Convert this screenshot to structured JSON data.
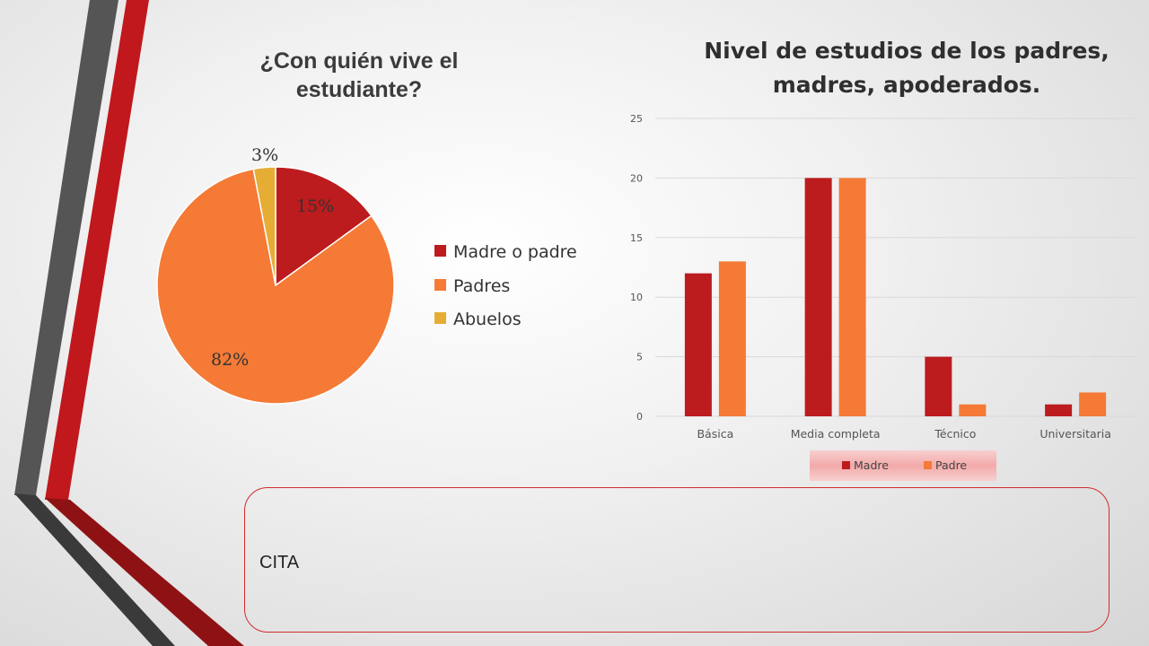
{
  "colors": {
    "dark_red": "#bc1c1e",
    "orange": "#f47a36",
    "yellow": "#e6ad35",
    "decor_gray": "#555555",
    "decor_red": "#c0181d"
  },
  "pie": {
    "title": "¿Con quién vive el estudiante?",
    "labels": {
      "madre_o_padre": "15%",
      "padres": "82%",
      "abuelos": "3%"
    },
    "legend": {
      "madre_o_padre": "Madre o padre",
      "padres": "Padres",
      "abuelos": "Abuelos"
    }
  },
  "bar": {
    "title": "Nivel de estudios de los padres, madres, apoderados."
  },
  "cita": {
    "text": "CITA"
  },
  "chart_data": [
    {
      "type": "pie",
      "title": "¿Con quién vive el estudiante?",
      "categories": [
        "Madre o padre",
        "Padres",
        "Abuelos"
      ],
      "values": [
        15,
        82,
        3
      ],
      "unit": "%",
      "legend": "right"
    },
    {
      "type": "bar",
      "title": "Nivel de estudios de los padres, madres, apoderados.",
      "categories": [
        "Básica",
        "Media completa",
        "Técnico",
        "Universitaria"
      ],
      "series": [
        {
          "name": "Madre",
          "values": [
            12,
            20,
            5,
            1
          ]
        },
        {
          "name": "Padre",
          "values": [
            13,
            20,
            1,
            2
          ]
        }
      ],
      "yticks": [
        "0",
        "5",
        "10",
        "15",
        "20",
        "25"
      ],
      "ylim": [
        0,
        25
      ],
      "grid": true,
      "legend": "bottom"
    }
  ]
}
